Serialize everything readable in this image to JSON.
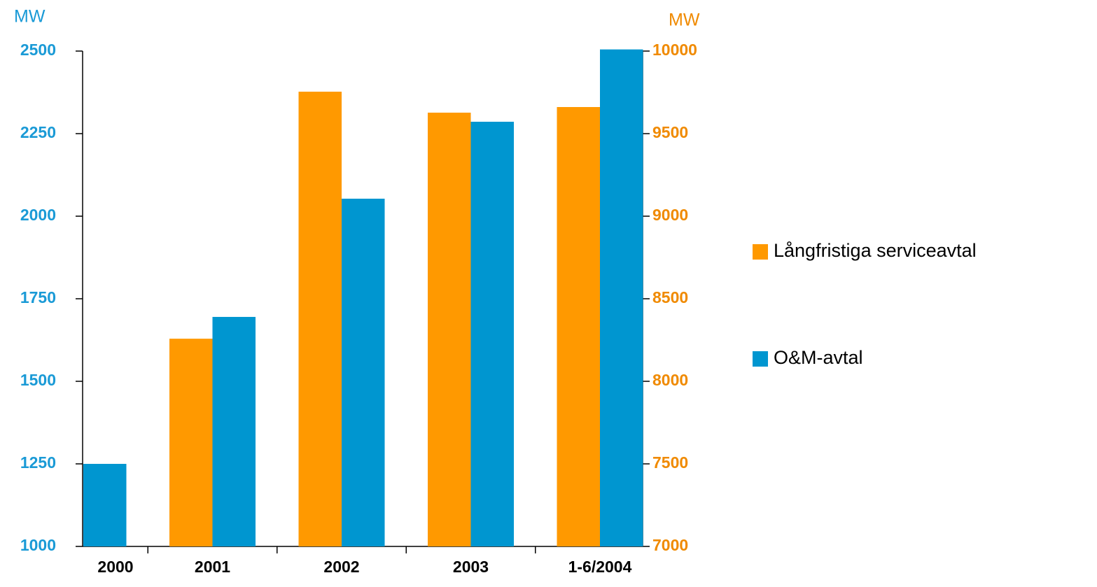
{
  "chart_data": {
    "type": "bar",
    "ylabel": "MW",
    "y2label": "MW",
    "categories": [
      "2000",
      "2001",
      "2002",
      "2003",
      "1-6/2004"
    ],
    "series": [
      {
        "name": "Långfristiga serviceavtal",
        "color": "#ff9900",
        "axis": "y2",
        "values": [
          null,
          8258,
          9754,
          9627,
          9661
        ]
      },
      {
        "name": "O&M-avtal",
        "color": "#0096d0",
        "values": [
          1250,
          1695,
          2053,
          2286,
          2505
        ]
      }
    ],
    "ylim": [
      1000,
      2500
    ],
    "yticks": [
      1000,
      1250,
      1500,
      1750,
      2000,
      2250,
      2500
    ],
    "y2lim": [
      7000,
      10000
    ],
    "y2ticks": [
      7000,
      7500,
      8000,
      8500,
      9000,
      9500,
      10000
    ],
    "ycolor": "#1a9ad6",
    "y2color": "#f08a00"
  }
}
